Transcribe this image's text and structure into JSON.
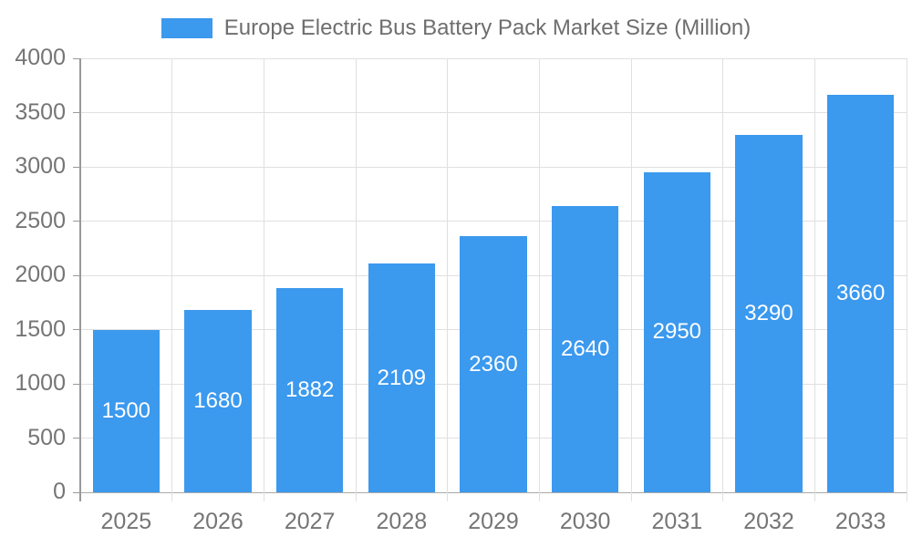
{
  "legend": {
    "label": "Europe Electric Bus Battery Pack Market Size (Million)"
  },
  "colors": {
    "bar": "#3b99ee",
    "axis_line": "#999999",
    "baseline": "#aaaaaa",
    "grid_line": "#e0e0e0",
    "tick_text": "#757575",
    "legend_text": "#6e6e6e",
    "value_text": "#ffffff"
  },
  "chart_data": {
    "type": "bar",
    "title": "Europe Electric Bus Battery Pack Market Size (Million)",
    "categories": [
      "2025",
      "2026",
      "2027",
      "2028",
      "2029",
      "2030",
      "2031",
      "2032",
      "2033"
    ],
    "values": [
      1500,
      1680,
      1882,
      2109,
      2360,
      2640,
      2950,
      3290,
      3660
    ],
    "series": [
      {
        "name": "Europe Electric Bus Battery Pack Market Size (Million)",
        "values": [
          1500,
          1680,
          1882,
          2109,
          2360,
          2640,
          2950,
          3290,
          3660
        ]
      }
    ],
    "xlabel": "",
    "ylabel": "",
    "ylim": [
      0,
      4000
    ],
    "yticks": [
      0,
      500,
      1000,
      1500,
      2000,
      2500,
      3000,
      3500,
      4000
    ],
    "grid": true,
    "legend_position": "top-center",
    "bar_label_position": "inside-center"
  }
}
